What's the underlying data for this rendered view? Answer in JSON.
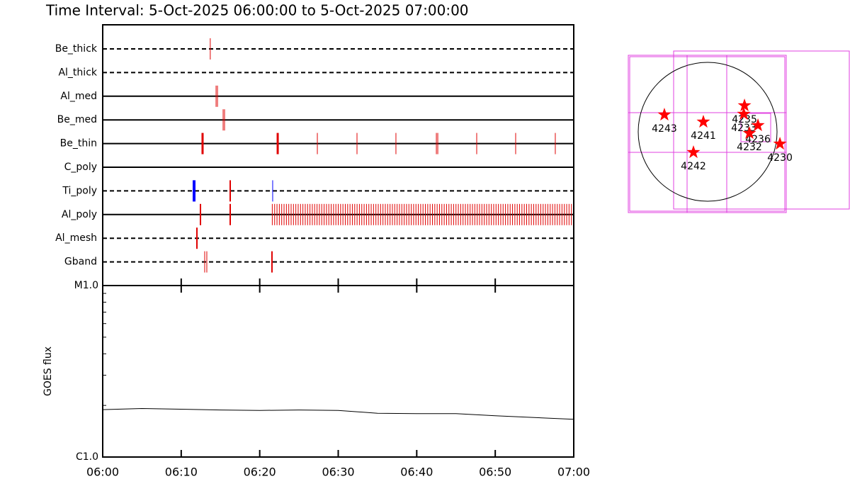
{
  "chart_data": [
    {
      "type": "timeline",
      "title": "Time Interval:  5-Oct-2025 06:00:00 to  5-Oct-2025 07:00:00",
      "xlim": [
        0,
        60
      ],
      "rows": [
        {
          "name": "Be_thick",
          "line": "dashed",
          "series": [
            {
              "color": "#e00000",
              "line_width": 1,
              "values": [
                13.7
              ]
            }
          ]
        },
        {
          "name": "Al_thick",
          "line": "dashed",
          "series": []
        },
        {
          "name": "Al_med",
          "line": "solid",
          "series": [
            {
              "color": "#e00000",
              "line_width": 1,
              "values": [
                14.44,
                14.62
              ]
            }
          ]
        },
        {
          "name": "Be_med",
          "line": "solid",
          "series": [
            {
              "color": "#e00000",
              "line_width": 1,
              "values": [
                15.34,
                15.52
              ]
            }
          ]
        },
        {
          "name": "Be_thin",
          "line": "solid",
          "series": [
            {
              "color": "#e00000",
              "line_width": 3,
              "values": [
                12.72,
                22.29
              ]
            },
            {
              "color": "#e00000",
              "line_width": 1,
              "values": [
                27.34,
                32.39,
                37.35,
                42.5,
                42.68,
                47.64,
                52.6,
                57.65
              ]
            }
          ]
        },
        {
          "name": "C_poly",
          "line": "solid",
          "series": []
        },
        {
          "name": "Ti_poly",
          "line": "dashed",
          "series": [
            {
              "color": "#0000ff",
              "line_width": 4,
              "values": [
                11.64
              ]
            },
            {
              "color": "#e00000",
              "line_width": 2,
              "values": [
                16.24
              ]
            },
            {
              "color": "#0000ff",
              "line_width": 1,
              "values": [
                21.65
              ]
            }
          ]
        },
        {
          "name": "Al_poly",
          "line": "solid",
          "series": [
            {
              "color": "#e00000",
              "line_width": 2,
              "values": [
                12.45,
                16.24
              ]
            },
            {
              "color": "#e00000",
              "line_width": 1,
              "values": [
                21.6,
                21.9,
                22.2,
                22.5,
                22.8,
                23.1,
                23.4,
                23.7,
                24,
                24.3,
                24.6,
                24.9,
                25.2,
                25.5,
                25.8,
                26.1,
                26.4,
                26.7,
                27,
                27.3,
                27.6,
                27.9,
                28.2,
                28.5,
                28.8,
                29.1,
                29.4,
                29.7,
                30,
                30.3,
                30.6,
                30.9,
                31.2,
                31.5,
                31.8,
                32.1,
                32.4,
                32.7,
                33,
                33.3,
                33.6,
                33.9,
                34.2,
                34.5,
                34.8,
                35.1,
                35.4,
                35.7,
                36,
                36.3,
                36.6,
                36.9,
                37.2,
                37.5,
                37.8,
                38.1,
                38.4,
                38.7,
                39,
                39.3,
                39.6,
                39.9,
                40.2,
                40.5,
                40.8,
                41.1,
                41.4,
                41.7,
                42,
                42.3,
                42.6,
                42.9,
                43.2,
                43.5,
                43.8,
                44.1,
                44.4,
                44.7,
                45,
                45.3,
                45.6,
                45.9,
                46.2,
                46.5,
                46.8,
                47.1,
                47.4,
                47.7,
                48,
                48.3,
                48.6,
                48.9,
                49.2,
                49.5,
                49.8,
                50.1,
                50.4,
                50.7,
                51,
                51.3,
                51.6,
                51.9,
                52.2,
                52.5,
                52.8,
                53.1,
                53.4,
                53.7,
                54,
                54.3,
                54.6,
                54.9,
                55.2,
                55.5,
                55.8,
                56.1,
                56.4,
                56.7,
                57,
                57.3,
                57.6,
                57.9,
                58.2,
                58.5,
                58.8,
                59.1,
                59.4,
                59.7
              ]
            }
          ]
        },
        {
          "name": "Al_mesh",
          "line": "dashed",
          "series": [
            {
              "color": "#e00000",
              "line_width": 2,
              "values": [
                12.0
              ]
            }
          ]
        },
        {
          "name": "Gband",
          "line": "dashed",
          "series": [
            {
              "color": "#e00000",
              "line_width": 1,
              "values": [
                12.99,
                13.26
              ]
            },
            {
              "color": "#e00000",
              "line_width": 2,
              "values": [
                21.56
              ]
            }
          ]
        }
      ]
    },
    {
      "type": "line",
      "ylabel": "GOES flux",
      "log": true,
      "color": "#000000",
      "x": [
        0,
        5,
        10,
        15,
        20,
        25,
        30,
        35,
        40,
        45,
        50,
        55,
        60
      ],
      "values": [
        1.89e-06,
        1.92e-06,
        1.9e-06,
        1.88e-06,
        1.87e-06,
        1.88e-06,
        1.87e-06,
        1.8e-06,
        1.79e-06,
        1.79e-06,
        1.74e-06,
        1.7e-06,
        1.66e-06
      ],
      "xlim": [
        0,
        60
      ],
      "xticks": [
        {
          "value": 0,
          "label": "06:00"
        },
        {
          "value": 10,
          "label": "06:10"
        },
        {
          "value": 20,
          "label": "06:20"
        },
        {
          "value": 30,
          "label": "06:30"
        },
        {
          "value": 40,
          "label": "06:40"
        },
        {
          "value": 50,
          "label": "06:50"
        },
        {
          "value": 60,
          "label": "07:00"
        }
      ],
      "ylim": [
        1e-06,
        1e-05
      ],
      "yticks": [
        {
          "value": 1e-06,
          "label": "C1.0"
        },
        {
          "value": 1e-05,
          "label": "M1.0"
        }
      ]
    },
    {
      "type": "map",
      "radius": 960,
      "color": "#ff0000",
      "points": [
        {
          "label": "4243",
          "x": -598,
          "y": 235
        },
        {
          "label": "4241",
          "x": -59,
          "y": 137
        },
        {
          "label": "4235",
          "x": 510,
          "y": 363
        },
        {
          "label": "4233",
          "x": 500,
          "y": 245
        },
        {
          "label": "4236",
          "x": 696,
          "y": 88
        },
        {
          "label": "4232",
          "x": 578,
          "y": -20
        },
        {
          "label": "4230",
          "x": 1000,
          "y": -167
        },
        {
          "label": "4242",
          "x": -196,
          "y": -284
        }
      ]
    }
  ]
}
